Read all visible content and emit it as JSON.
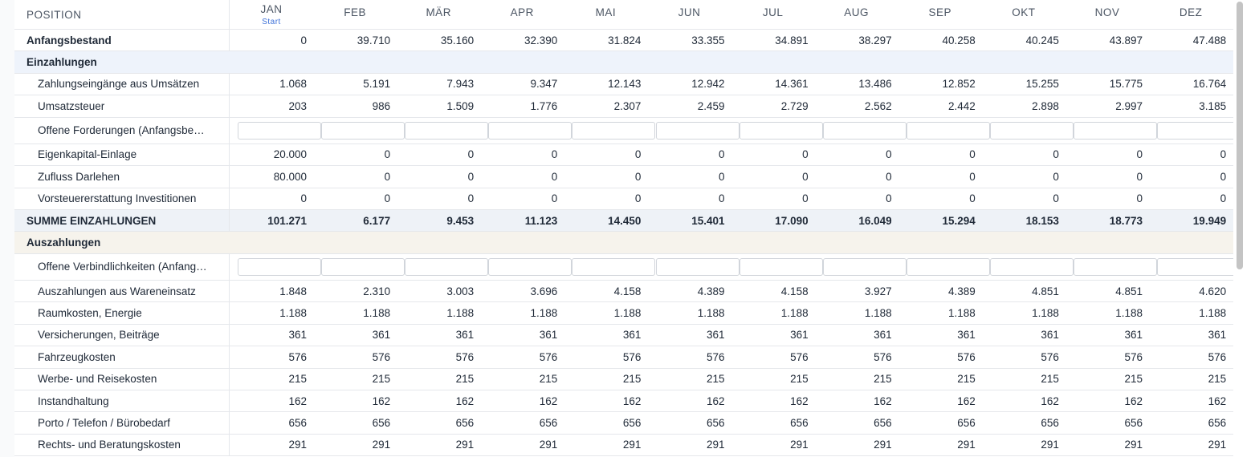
{
  "header": {
    "position_label": "POSITION",
    "months": [
      "JAN",
      "FEB",
      "MÄR",
      "APR",
      "MAI",
      "JUN",
      "JUL",
      "AUG",
      "SEP",
      "OKT",
      "NOV",
      "DEZ"
    ],
    "start_label": "Start"
  },
  "rows": [
    {
      "type": "data",
      "label": "Anfangsbestand",
      "bold": true,
      "indent": false,
      "values": [
        "0",
        "39.710",
        "35.160",
        "32.390",
        "31.824",
        "33.355",
        "34.891",
        "38.297",
        "40.258",
        "40.245",
        "43.897",
        "47.488"
      ]
    },
    {
      "type": "section",
      "label": "Einzahlungen",
      "tone": "blue"
    },
    {
      "type": "data",
      "label": "Zahlungseingänge aus Umsätzen",
      "indent": true,
      "values": [
        "1.068",
        "5.191",
        "7.943",
        "9.347",
        "12.143",
        "12.942",
        "14.361",
        "13.486",
        "12.852",
        "15.255",
        "15.775",
        "16.764"
      ]
    },
    {
      "type": "data",
      "label": "Umsatzsteuer",
      "indent": true,
      "values": [
        "203",
        "986",
        "1.509",
        "1.776",
        "2.307",
        "2.459",
        "2.729",
        "2.562",
        "2.442",
        "2.898",
        "2.997",
        "3.185"
      ]
    },
    {
      "type": "input",
      "label": "Offene Forderungen (Anfangsbe…",
      "indent": true
    },
    {
      "type": "data",
      "label": "Eigenkapital-Einlage",
      "indent": true,
      "values": [
        "20.000",
        "0",
        "0",
        "0",
        "0",
        "0",
        "0",
        "0",
        "0",
        "0",
        "0",
        "0"
      ]
    },
    {
      "type": "data",
      "label": "Zufluss Darlehen",
      "indent": true,
      "values": [
        "80.000",
        "0",
        "0",
        "0",
        "0",
        "0",
        "0",
        "0",
        "0",
        "0",
        "0",
        "0"
      ]
    },
    {
      "type": "data",
      "label": "Vorsteuererstattung Investitionen",
      "indent": true,
      "values": [
        "0",
        "0",
        "0",
        "0",
        "0",
        "0",
        "0",
        "0",
        "0",
        "0",
        "0",
        "0"
      ]
    },
    {
      "type": "total",
      "label": "SUMME EINZAHLUNGEN",
      "values": [
        "101.271",
        "6.177",
        "9.453",
        "11.123",
        "14.450",
        "15.401",
        "17.090",
        "16.049",
        "15.294",
        "18.153",
        "18.773",
        "19.949"
      ]
    },
    {
      "type": "section",
      "label": "Auszahlungen",
      "tone": "beige"
    },
    {
      "type": "input",
      "label": "Offene Verbindlichkeiten (Anfang…",
      "indent": true
    },
    {
      "type": "data",
      "label": "Auszahlungen aus Wareneinsatz",
      "indent": true,
      "values": [
        "1.848",
        "2.310",
        "3.003",
        "3.696",
        "4.158",
        "4.389",
        "4.158",
        "3.927",
        "4.389",
        "4.851",
        "4.851",
        "4.620"
      ]
    },
    {
      "type": "data",
      "label": "Raumkosten, Energie",
      "indent": true,
      "values": [
        "1.188",
        "1.188",
        "1.188",
        "1.188",
        "1.188",
        "1.188",
        "1.188",
        "1.188",
        "1.188",
        "1.188",
        "1.188",
        "1.188"
      ]
    },
    {
      "type": "data",
      "label": "Versicherungen, Beiträge",
      "indent": true,
      "values": [
        "361",
        "361",
        "361",
        "361",
        "361",
        "361",
        "361",
        "361",
        "361",
        "361",
        "361",
        "361"
      ]
    },
    {
      "type": "data",
      "label": "Fahrzeugkosten",
      "indent": true,
      "values": [
        "576",
        "576",
        "576",
        "576",
        "576",
        "576",
        "576",
        "576",
        "576",
        "576",
        "576",
        "576"
      ]
    },
    {
      "type": "data",
      "label": "Werbe- und Reisekosten",
      "indent": true,
      "values": [
        "215",
        "215",
        "215",
        "215",
        "215",
        "215",
        "215",
        "215",
        "215",
        "215",
        "215",
        "215"
      ]
    },
    {
      "type": "data",
      "label": "Instandhaltung",
      "indent": true,
      "values": [
        "162",
        "162",
        "162",
        "162",
        "162",
        "162",
        "162",
        "162",
        "162",
        "162",
        "162",
        "162"
      ]
    },
    {
      "type": "data",
      "label": "Porto / Telefon / Bürobedarf",
      "indent": true,
      "values": [
        "656",
        "656",
        "656",
        "656",
        "656",
        "656",
        "656",
        "656",
        "656",
        "656",
        "656",
        "656"
      ]
    },
    {
      "type": "data",
      "label": "Rechts- und Beratungskosten",
      "indent": true,
      "values": [
        "291",
        "291",
        "291",
        "291",
        "291",
        "291",
        "291",
        "291",
        "291",
        "291",
        "291",
        "291"
      ]
    }
  ]
}
